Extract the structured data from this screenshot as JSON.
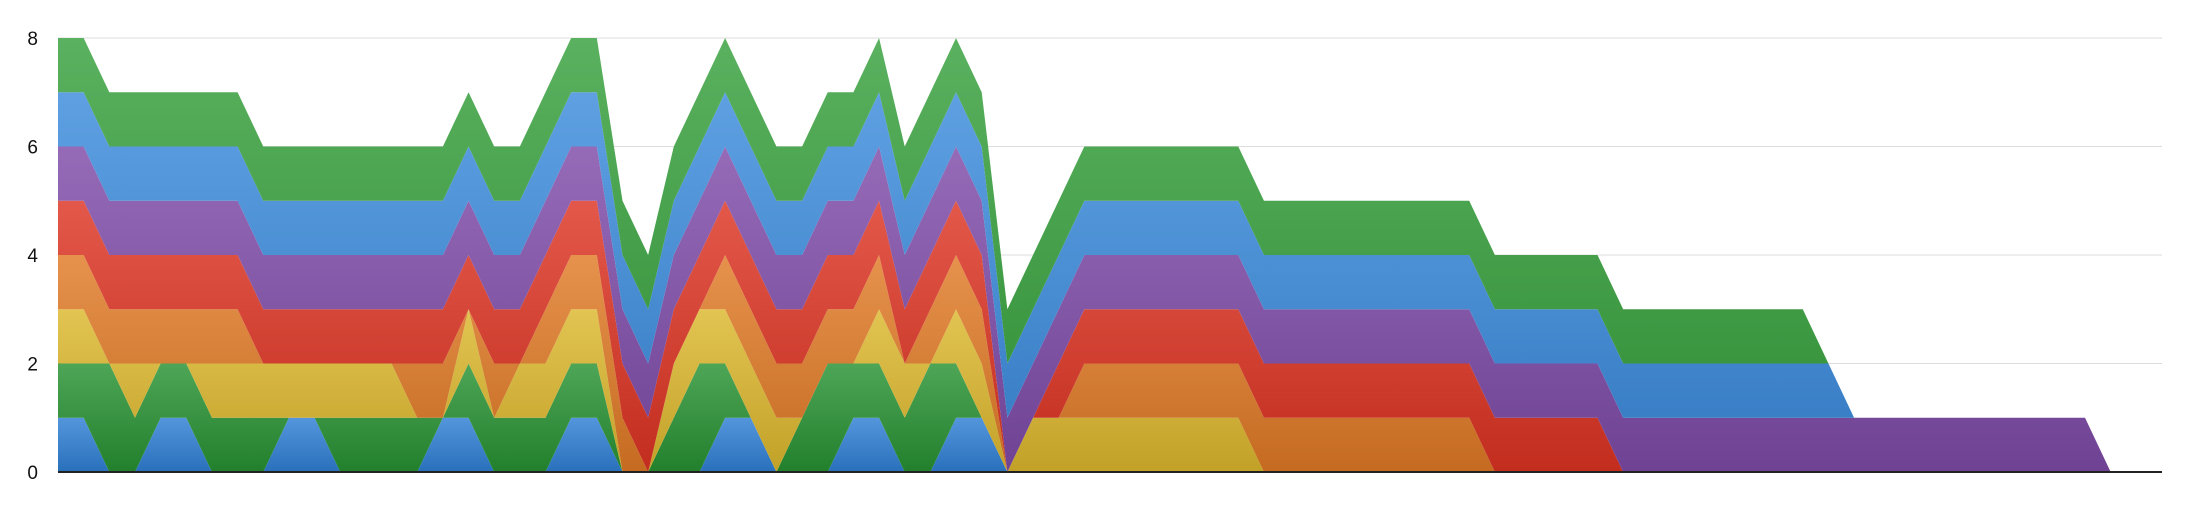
{
  "chart_data": {
    "type": "area",
    "stacked": true,
    "ylim": [
      0,
      8
    ],
    "yticks": [
      "0",
      "2",
      "4",
      "6",
      "8"
    ],
    "grid": true,
    "legend": "none",
    "x": [
      0,
      1,
      2,
      3,
      4,
      5,
      6,
      7,
      8,
      9,
      10,
      11,
      12,
      13,
      14,
      15,
      16,
      17,
      18,
      19,
      20,
      21,
      22,
      23,
      24,
      25,
      26,
      27,
      28,
      29,
      30,
      31,
      32,
      33,
      34,
      35,
      36,
      37,
      38,
      39,
      40,
      41,
      42,
      43,
      44,
      45,
      46,
      47,
      48,
      49,
      50,
      51,
      52,
      53,
      54,
      55,
      56,
      57,
      58,
      59,
      60,
      61,
      62,
      63,
      64,
      65,
      66,
      67,
      68,
      69,
      70,
      71,
      72,
      73,
      74,
      75,
      76,
      77,
      78,
      79,
      80,
      81,
      82
    ],
    "series": [
      {
        "color": "#2f7fd4",
        "values": [
          1,
          1,
          0,
          0,
          1,
          1,
          0,
          0,
          0,
          1,
          1,
          0,
          0,
          0,
          0,
          1,
          1,
          0,
          0,
          0,
          1,
          1,
          0,
          0,
          0,
          0,
          1,
          1,
          0,
          0,
          0,
          1,
          1,
          0,
          0,
          1,
          1,
          0,
          0,
          0,
          0,
          0,
          0,
          0,
          0,
          0,
          0,
          0,
          0,
          0,
          0,
          0,
          0,
          0,
          0,
          0,
          0,
          0,
          0,
          0,
          0,
          0,
          0,
          0,
          0,
          0,
          0,
          0,
          0,
          0,
          0,
          0,
          0,
          0,
          0,
          0,
          0,
          0,
          0,
          0,
          0,
          0,
          0
        ]
      },
      {
        "color": "#279132",
        "values": [
          1,
          1,
          2,
          1,
          1,
          1,
          1,
          1,
          1,
          0,
          0,
          1,
          1,
          1,
          1,
          0,
          1,
          1,
          1,
          1,
          1,
          1,
          0,
          0,
          1,
          2,
          1,
          0,
          0,
          1,
          2,
          1,
          1,
          1,
          2,
          1,
          0,
          0,
          0,
          0,
          0,
          0,
          0,
          0,
          0,
          0,
          0,
          0,
          0,
          0,
          0,
          0,
          0,
          0,
          0,
          0,
          0,
          0,
          0,
          0,
          0,
          0,
          0,
          0,
          0,
          0,
          0,
          0,
          0,
          0,
          0,
          0,
          0,
          0,
          0,
          0,
          0,
          0,
          0,
          0,
          0,
          0,
          0
        ]
      },
      {
        "color": "#dcb72c",
        "values": [
          1,
          1,
          0,
          1,
          0,
          0,
          1,
          1,
          1,
          1,
          1,
          1,
          1,
          1,
          0,
          0,
          1,
          0,
          1,
          1,
          1,
          1,
          0,
          0,
          1,
          1,
          1,
          1,
          1,
          0,
          0,
          0,
          1,
          1,
          0,
          1,
          1,
          0,
          1,
          1,
          1,
          1,
          1,
          1,
          1,
          1,
          1,
          0,
          0,
          0,
          0,
          0,
          0,
          0,
          0,
          0,
          0,
          0,
          0,
          0,
          0,
          0,
          0,
          0,
          0,
          0,
          0,
          0,
          0,
          0,
          0,
          0,
          0,
          0,
          0,
          0,
          0,
          0,
          0,
          0,
          0,
          0,
          0
        ]
      },
      {
        "color": "#e07a26",
        "values": [
          1,
          1,
          1,
          1,
          1,
          1,
          1,
          1,
          0,
          0,
          0,
          0,
          0,
          0,
          1,
          1,
          0,
          1,
          0,
          1,
          1,
          1,
          1,
          0,
          0,
          0,
          1,
          1,
          1,
          1,
          1,
          1,
          1,
          0,
          1,
          1,
          1,
          0,
          0,
          0,
          1,
          1,
          1,
          1,
          1,
          1,
          1,
          1,
          1,
          1,
          1,
          1,
          1,
          1,
          1,
          1,
          0,
          0,
          0,
          0,
          0,
          0,
          0,
          0,
          0,
          0,
          0,
          0,
          0,
          0,
          0,
          0,
          0,
          0,
          0,
          0,
          0,
          0,
          0,
          0,
          0,
          0,
          0
        ]
      },
      {
        "color": "#dd3322",
        "values": [
          1,
          1,
          1,
          1,
          1,
          1,
          1,
          1,
          1,
          1,
          1,
          1,
          1,
          1,
          1,
          1,
          1,
          1,
          1,
          1,
          1,
          1,
          1,
          1,
          1,
          1,
          1,
          1,
          1,
          1,
          1,
          1,
          1,
          1,
          1,
          1,
          1,
          0,
          0,
          1,
          1,
          1,
          1,
          1,
          1,
          1,
          1,
          1,
          1,
          1,
          1,
          1,
          1,
          1,
          1,
          1,
          1,
          1,
          1,
          1,
          1,
          0,
          0,
          0,
          0,
          0,
          0,
          0,
          0,
          0,
          0,
          0,
          0,
          0,
          0,
          0,
          0,
          0,
          0,
          0,
          0,
          0,
          0
        ]
      },
      {
        "color": "#7e4ba8",
        "values": [
          1,
          1,
          1,
          1,
          1,
          1,
          1,
          1,
          1,
          1,
          1,
          1,
          1,
          1,
          1,
          1,
          1,
          1,
          1,
          1,
          1,
          1,
          1,
          1,
          1,
          1,
          1,
          1,
          1,
          1,
          1,
          1,
          1,
          1,
          1,
          1,
          1,
          1,
          1,
          1,
          1,
          1,
          1,
          1,
          1,
          1,
          1,
          1,
          1,
          1,
          1,
          1,
          1,
          1,
          1,
          1,
          1,
          1,
          1,
          1,
          1,
          1,
          1,
          1,
          1,
          1,
          1,
          1,
          1,
          1,
          1,
          1,
          1,
          1,
          1,
          1,
          1,
          1,
          1,
          1,
          0,
          0,
          0
        ]
      },
      {
        "color": "#3b8bdc",
        "values": [
          1,
          1,
          1,
          1,
          1,
          1,
          1,
          1,
          1,
          1,
          1,
          1,
          1,
          1,
          1,
          1,
          1,
          1,
          1,
          1,
          1,
          1,
          1,
          1,
          1,
          1,
          1,
          1,
          1,
          1,
          1,
          1,
          1,
          1,
          1,
          1,
          1,
          1,
          1,
          1,
          1,
          1,
          1,
          1,
          1,
          1,
          1,
          1,
          1,
          1,
          1,
          1,
          1,
          1,
          1,
          1,
          1,
          1,
          1,
          1,
          1,
          1,
          1,
          1,
          1,
          1,
          1,
          1,
          1,
          1,
          0,
          0,
          0,
          0,
          0,
          0,
          0,
          0,
          0,
          0,
          0,
          0,
          0
        ]
      },
      {
        "color": "#36a03c",
        "values": [
          1,
          1,
          1,
          1,
          1,
          1,
          1,
          1,
          1,
          1,
          1,
          1,
          1,
          1,
          1,
          1,
          1,
          1,
          1,
          1,
          1,
          1,
          1,
          1,
          1,
          1,
          1,
          1,
          1,
          1,
          1,
          1,
          1,
          1,
          1,
          1,
          1,
          1,
          1,
          1,
          1,
          1,
          1,
          1,
          1,
          1,
          1,
          1,
          1,
          1,
          1,
          1,
          1,
          1,
          1,
          1,
          1,
          1,
          1,
          1,
          1,
          1,
          1,
          1,
          1,
          1,
          1,
          1,
          1,
          0,
          0,
          0,
          0,
          0,
          0,
          0,
          0,
          0,
          0,
          0,
          0,
          0,
          0
        ]
      }
    ]
  }
}
